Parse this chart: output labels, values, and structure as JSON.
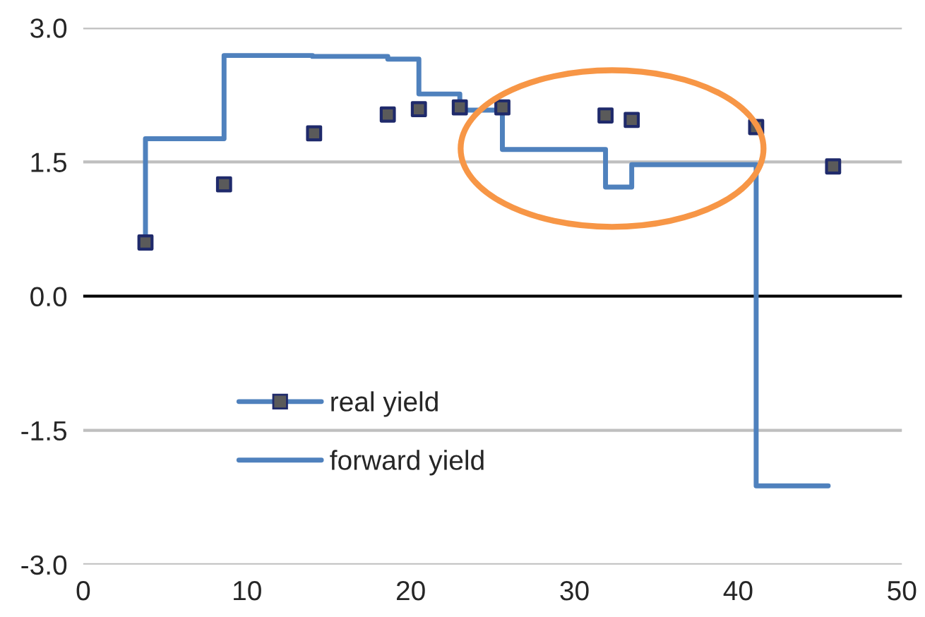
{
  "chart_data": {
    "type": "scatter",
    "series": [
      {
        "name": "real yield",
        "color": "#5a5a5a",
        "marker": "square",
        "x": [
          3.8,
          8.6,
          14.1,
          18.6,
          20.5,
          23.0,
          25.6,
          31.9,
          33.5,
          41.1,
          45.8
        ],
        "values": [
          0.6,
          1.25,
          1.82,
          2.03,
          2.09,
          2.11,
          2.11,
          2.02,
          1.97,
          1.89,
          1.45
        ]
      },
      {
        "name": "forward yield",
        "type": "step",
        "color": "#4f81bd",
        "line_style": "solid",
        "x": [
          3.8,
          3.8,
          8.6,
          14.0,
          18.6,
          20.5,
          23.0,
          25.6,
          31.9,
          33.5,
          41.1,
          45.5
        ],
        "values": [
          0.6,
          1.76,
          2.69,
          2.68,
          2.65,
          2.26,
          2.08,
          1.64,
          1.22,
          1.47,
          -2.12,
          -2.12
        ]
      }
    ],
    "xlim": [
      0,
      50
    ],
    "xticks": [
      0,
      10,
      20,
      30,
      40,
      50
    ],
    "ylim": [
      -3.0,
      3.0
    ],
    "yticks": [
      {
        "value": -3.0,
        "label": "-3.0"
      },
      {
        "value": -1.5,
        "label": "-1.5"
      },
      {
        "value": 0.0,
        "label": "0.0"
      },
      {
        "value": 1.5,
        "label": "1.5"
      },
      {
        "value": 3.0,
        "label": "3.0"
      }
    ],
    "ref_lines": [
      {
        "axis": "y",
        "value": 0,
        "color": "#000000"
      }
    ],
    "grid": "y",
    "legend": "bottom left"
  }
}
